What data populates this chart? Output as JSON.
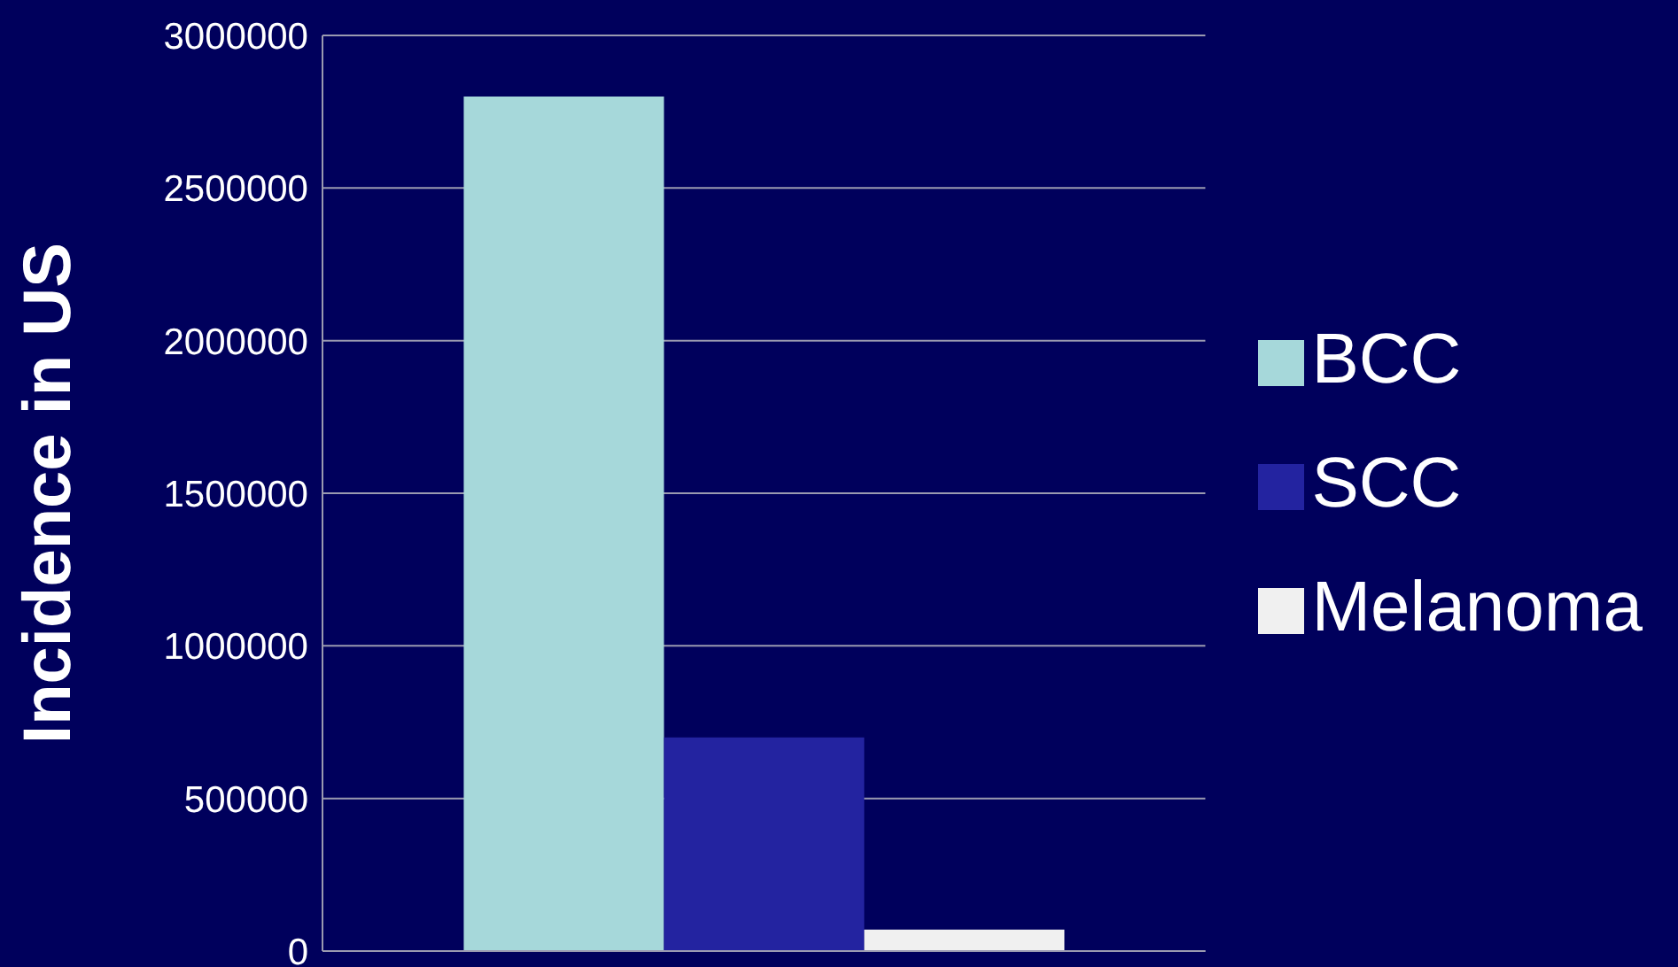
{
  "chart_data": {
    "type": "bar",
    "ylabel": "Incidence in US",
    "categories": [
      null
    ],
    "series": [
      {
        "name": "BCC",
        "color": "#a6d8da",
        "values": [
          2800000
        ]
      },
      {
        "name": "SCC",
        "color": "#2323a0",
        "values": [
          700000
        ]
      },
      {
        "name": "Melanoma",
        "color": "#f0f0f0",
        "values": [
          70000
        ]
      }
    ],
    "ylim": [
      0,
      3000000
    ],
    "yticks": [
      0,
      500000,
      1000000,
      1500000,
      2000000,
      2500000,
      3000000
    ],
    "grid": "y",
    "legend": "right",
    "tick_labels": "y"
  }
}
